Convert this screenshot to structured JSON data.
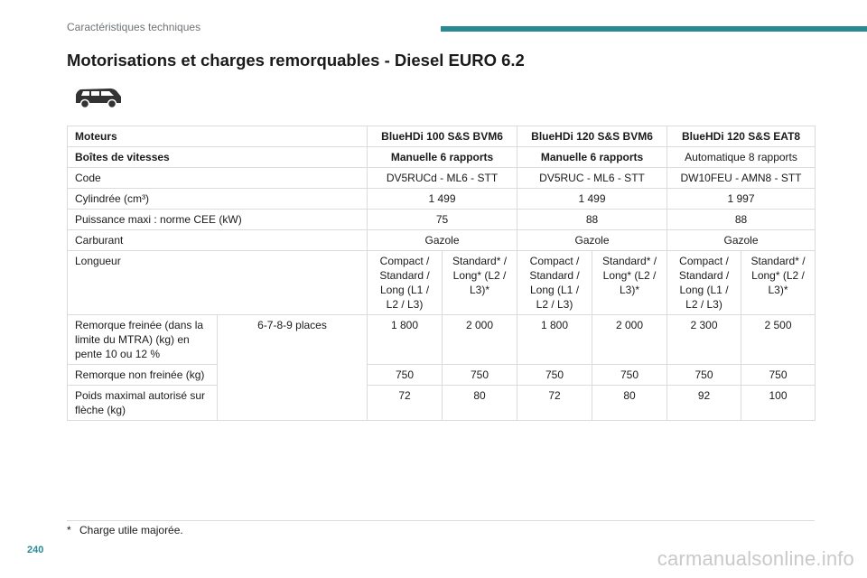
{
  "header": {
    "section": "Caractéristiques techniques",
    "title": "Motorisations et charges remorquables - Diesel EURO 6.2",
    "accent_color": "#2a8a94",
    "icon": "van-icon"
  },
  "table": {
    "rows": {
      "moteurs": {
        "label": "Moteurs",
        "values": [
          "BlueHDi 100 S&S BVM6",
          "BlueHDi 120 S&S BVM6",
          "BlueHDi 120 S&S EAT8"
        ]
      },
      "boites": {
        "label": "Boîtes de vitesses",
        "values": [
          "Manuelle 6 rapports",
          "Manuelle 6 rapports",
          "Automatique 8 rapports"
        ]
      },
      "code": {
        "label": "Code",
        "values": [
          "DV5RUCd - ML6 - STT",
          "DV5RUC - ML6 - STT",
          "DW10FEU - AMN8 - STT"
        ]
      },
      "cylindree": {
        "label": "Cylindrée (cm³)",
        "values": [
          "1 499",
          "1 499",
          "1 997"
        ]
      },
      "puissance": {
        "label": "Puissance maxi : norme CEE (kW)",
        "values": [
          "75",
          "88",
          "88"
        ]
      },
      "carburant": {
        "label": "Carburant",
        "values": [
          "Gazole",
          "Gazole",
          "Gazole"
        ]
      },
      "longueur": {
        "label": "Longueur",
        "values": [
          "Compact / Standard / Long (L1 / L2 / L3)",
          "Standard* / Long* (L2 / L3)*",
          "Compact / Standard / Long (L1 / L2 / L3)",
          "Standard* / Long* (L2 / L3)*",
          "Compact / Standard / Long (L1 / L2 / L3)",
          "Standard* / Long* (L2 / L3)*"
        ]
      },
      "places": "6-7-8-9 places",
      "remorque_freinee": {
        "label": "Remorque freinée (dans la limite du MTRA) (kg) en pente 10 ou 12 %",
        "values": [
          "1 800",
          "2 000",
          "1 800",
          "2 000",
          "2 300",
          "2 500"
        ]
      },
      "remorque_non_freinee": {
        "label": "Remorque non freinée (kg)",
        "values": [
          "750",
          "750",
          "750",
          "750",
          "750",
          "750"
        ]
      },
      "poids_fleche": {
        "label": "Poids maximal autorisé sur flèche (kg)",
        "values": [
          "72",
          "80",
          "72",
          "80",
          "92",
          "100"
        ]
      }
    }
  },
  "footnote": {
    "mark": "*",
    "text": "Charge utile majorée."
  },
  "page_number": "240",
  "watermark": "carmanualsonline.info"
}
